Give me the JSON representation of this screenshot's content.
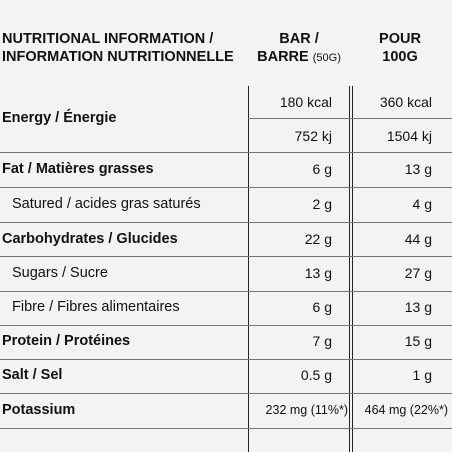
{
  "header": {
    "title_line1": "NUTRITIONAL INFORMATION /",
    "title_line2": "INFORMATION NUTRITIONNELLE",
    "col1_line1": "BAR /",
    "col1_line2": "BARRE",
    "col1_small": "(50G)",
    "col2_line1": "POUR",
    "col2_line2": "100G"
  },
  "rows": [
    {
      "label": "Energy / Énergie",
      "bar_kcal": "180 kcal",
      "per100_kcal": "360 kcal",
      "bar_kj": "752 kj",
      "per100_kj": "1504 kj"
    },
    {
      "label": "Fat / Matières grasses",
      "bar": "6 g",
      "per100": "13 g"
    },
    {
      "label": "Satured / acides gras saturés",
      "bar": "2 g",
      "per100": "4 g"
    },
    {
      "label": "Carbohydrates / Glucides",
      "bar": "22 g",
      "per100": "44 g"
    },
    {
      "label": "Sugars / Sucre",
      "bar": "13 g",
      "per100": "27 g"
    },
    {
      "label": "Fibre / Fibres alimentaires",
      "bar": "6 g",
      "per100": "13 g"
    },
    {
      "label": "Protein / Protéines",
      "bar": "7 g",
      "per100": "15 g"
    },
    {
      "label": "Salt / Sel",
      "bar": "0.5 g",
      "per100": "1 g"
    },
    {
      "label": "Potassium",
      "bar": "232 mg (11%*)",
      "per100": "464 mg (22%*)"
    }
  ]
}
